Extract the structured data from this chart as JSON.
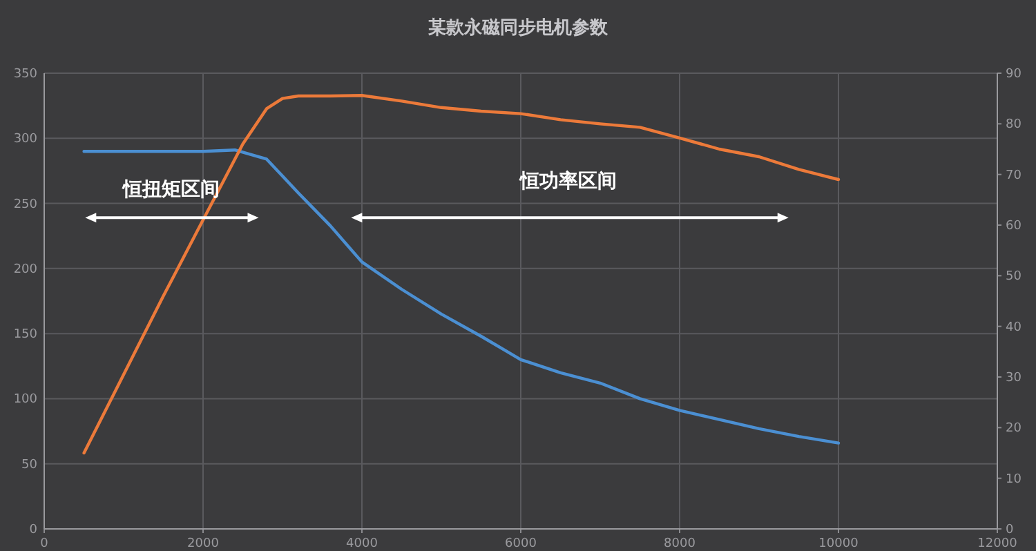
{
  "chart_data": {
    "type": "line",
    "title": "某款永磁同步电机参数",
    "xlim": [
      0,
      12000
    ],
    "xticks": [
      0,
      2000,
      4000,
      6000,
      8000,
      10000,
      12000
    ],
    "ylim": [
      0,
      350
    ],
    "yticks": [
      0,
      50,
      100,
      150,
      200,
      250,
      300,
      350
    ],
    "y2lim": [
      0,
      90
    ],
    "y2ticks": [
      0,
      10,
      20,
      30,
      40,
      50,
      60,
      70,
      80,
      90
    ],
    "grid": true,
    "marker": "none",
    "line_style": "solid",
    "series": [
      {
        "color": "#4b8fd2",
        "x": [
          500,
          1000,
          1500,
          2000,
          2400,
          2800,
          3200,
          3600,
          4000,
          4500,
          5000,
          5500,
          6000,
          6500,
          7000,
          7500,
          8000,
          8500,
          9000,
          9500,
          10000
        ],
        "values": [
          290,
          290,
          290,
          290,
          291,
          284,
          258,
          233,
          205,
          184,
          165,
          148,
          130,
          120,
          112,
          100,
          91,
          84,
          77,
          71,
          66
        ]
      },
      {
        "color": "#ec7a3a",
        "axis": "y2",
        "x": [
          500,
          1000,
          1500,
          2000,
          2500,
          2800,
          3000,
          3200,
          3600,
          4000,
          4500,
          5000,
          5500,
          6000,
          6500,
          7000,
          7500,
          8000,
          8500,
          9000,
          9500,
          10000
        ],
        "values": [
          15,
          30.5,
          46,
          61,
          76,
          83,
          85,
          85.5,
          85.5,
          85.6,
          84.5,
          83.2,
          82.5,
          82,
          80.8,
          80,
          79.3,
          77.2,
          75,
          73.5,
          71,
          69
        ]
      }
    ],
    "annotations": [
      "恒扭矩区间",
      "恒功率区间"
    ]
  }
}
